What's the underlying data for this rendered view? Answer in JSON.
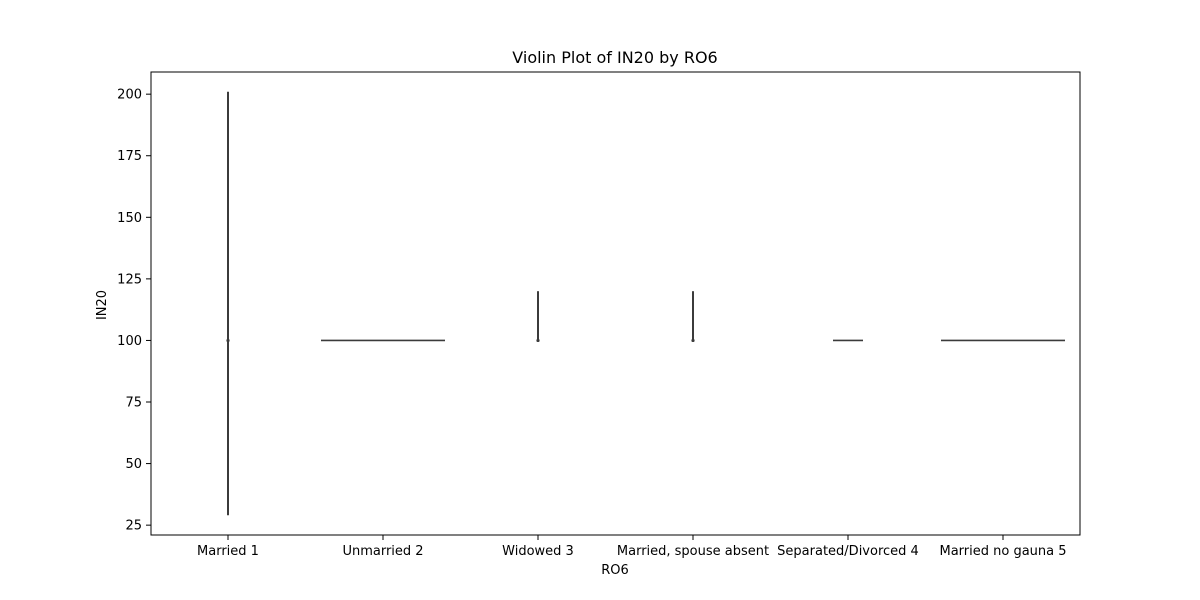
{
  "chart_data": {
    "type": "violin",
    "title": "Violin Plot of IN20 by RO6",
    "xlabel": "RO6",
    "ylabel": "IN20",
    "ylim": [
      21,
      209
    ],
    "yticks": [
      25,
      50,
      75,
      100,
      125,
      150,
      175,
      200
    ],
    "grid": false,
    "legend": "none",
    "colors": {
      "violin": "#3b3b3b",
      "axis": "#000000",
      "background": "#ffffff"
    },
    "categories": [
      "Married 1",
      "Unmarried 2",
      "Widowed 3",
      "Married, spouse absent",
      "Separated/Divorced 4",
      "Married no gauna 5"
    ],
    "violins": [
      {
        "category": "Married 1",
        "min": 29,
        "max": 201,
        "median": 100,
        "spread": "vertical line"
      },
      {
        "category": "Unmarried 2",
        "min": 100,
        "max": 100,
        "median": 100,
        "spread": "horizontal line"
      },
      {
        "category": "Widowed 3",
        "min": 100,
        "max": 120,
        "median": 100,
        "spread": "vertical line"
      },
      {
        "category": "Married, spouse absent",
        "min": 100,
        "max": 120,
        "median": 100,
        "spread": "vertical line"
      },
      {
        "category": "Separated/Divorced 4",
        "min": 100,
        "max": 100,
        "median": 100,
        "spread": "short horizontal line"
      },
      {
        "category": "Married no gauna 5",
        "min": 100,
        "max": 100,
        "median": 100,
        "spread": "horizontal line"
      }
    ]
  }
}
